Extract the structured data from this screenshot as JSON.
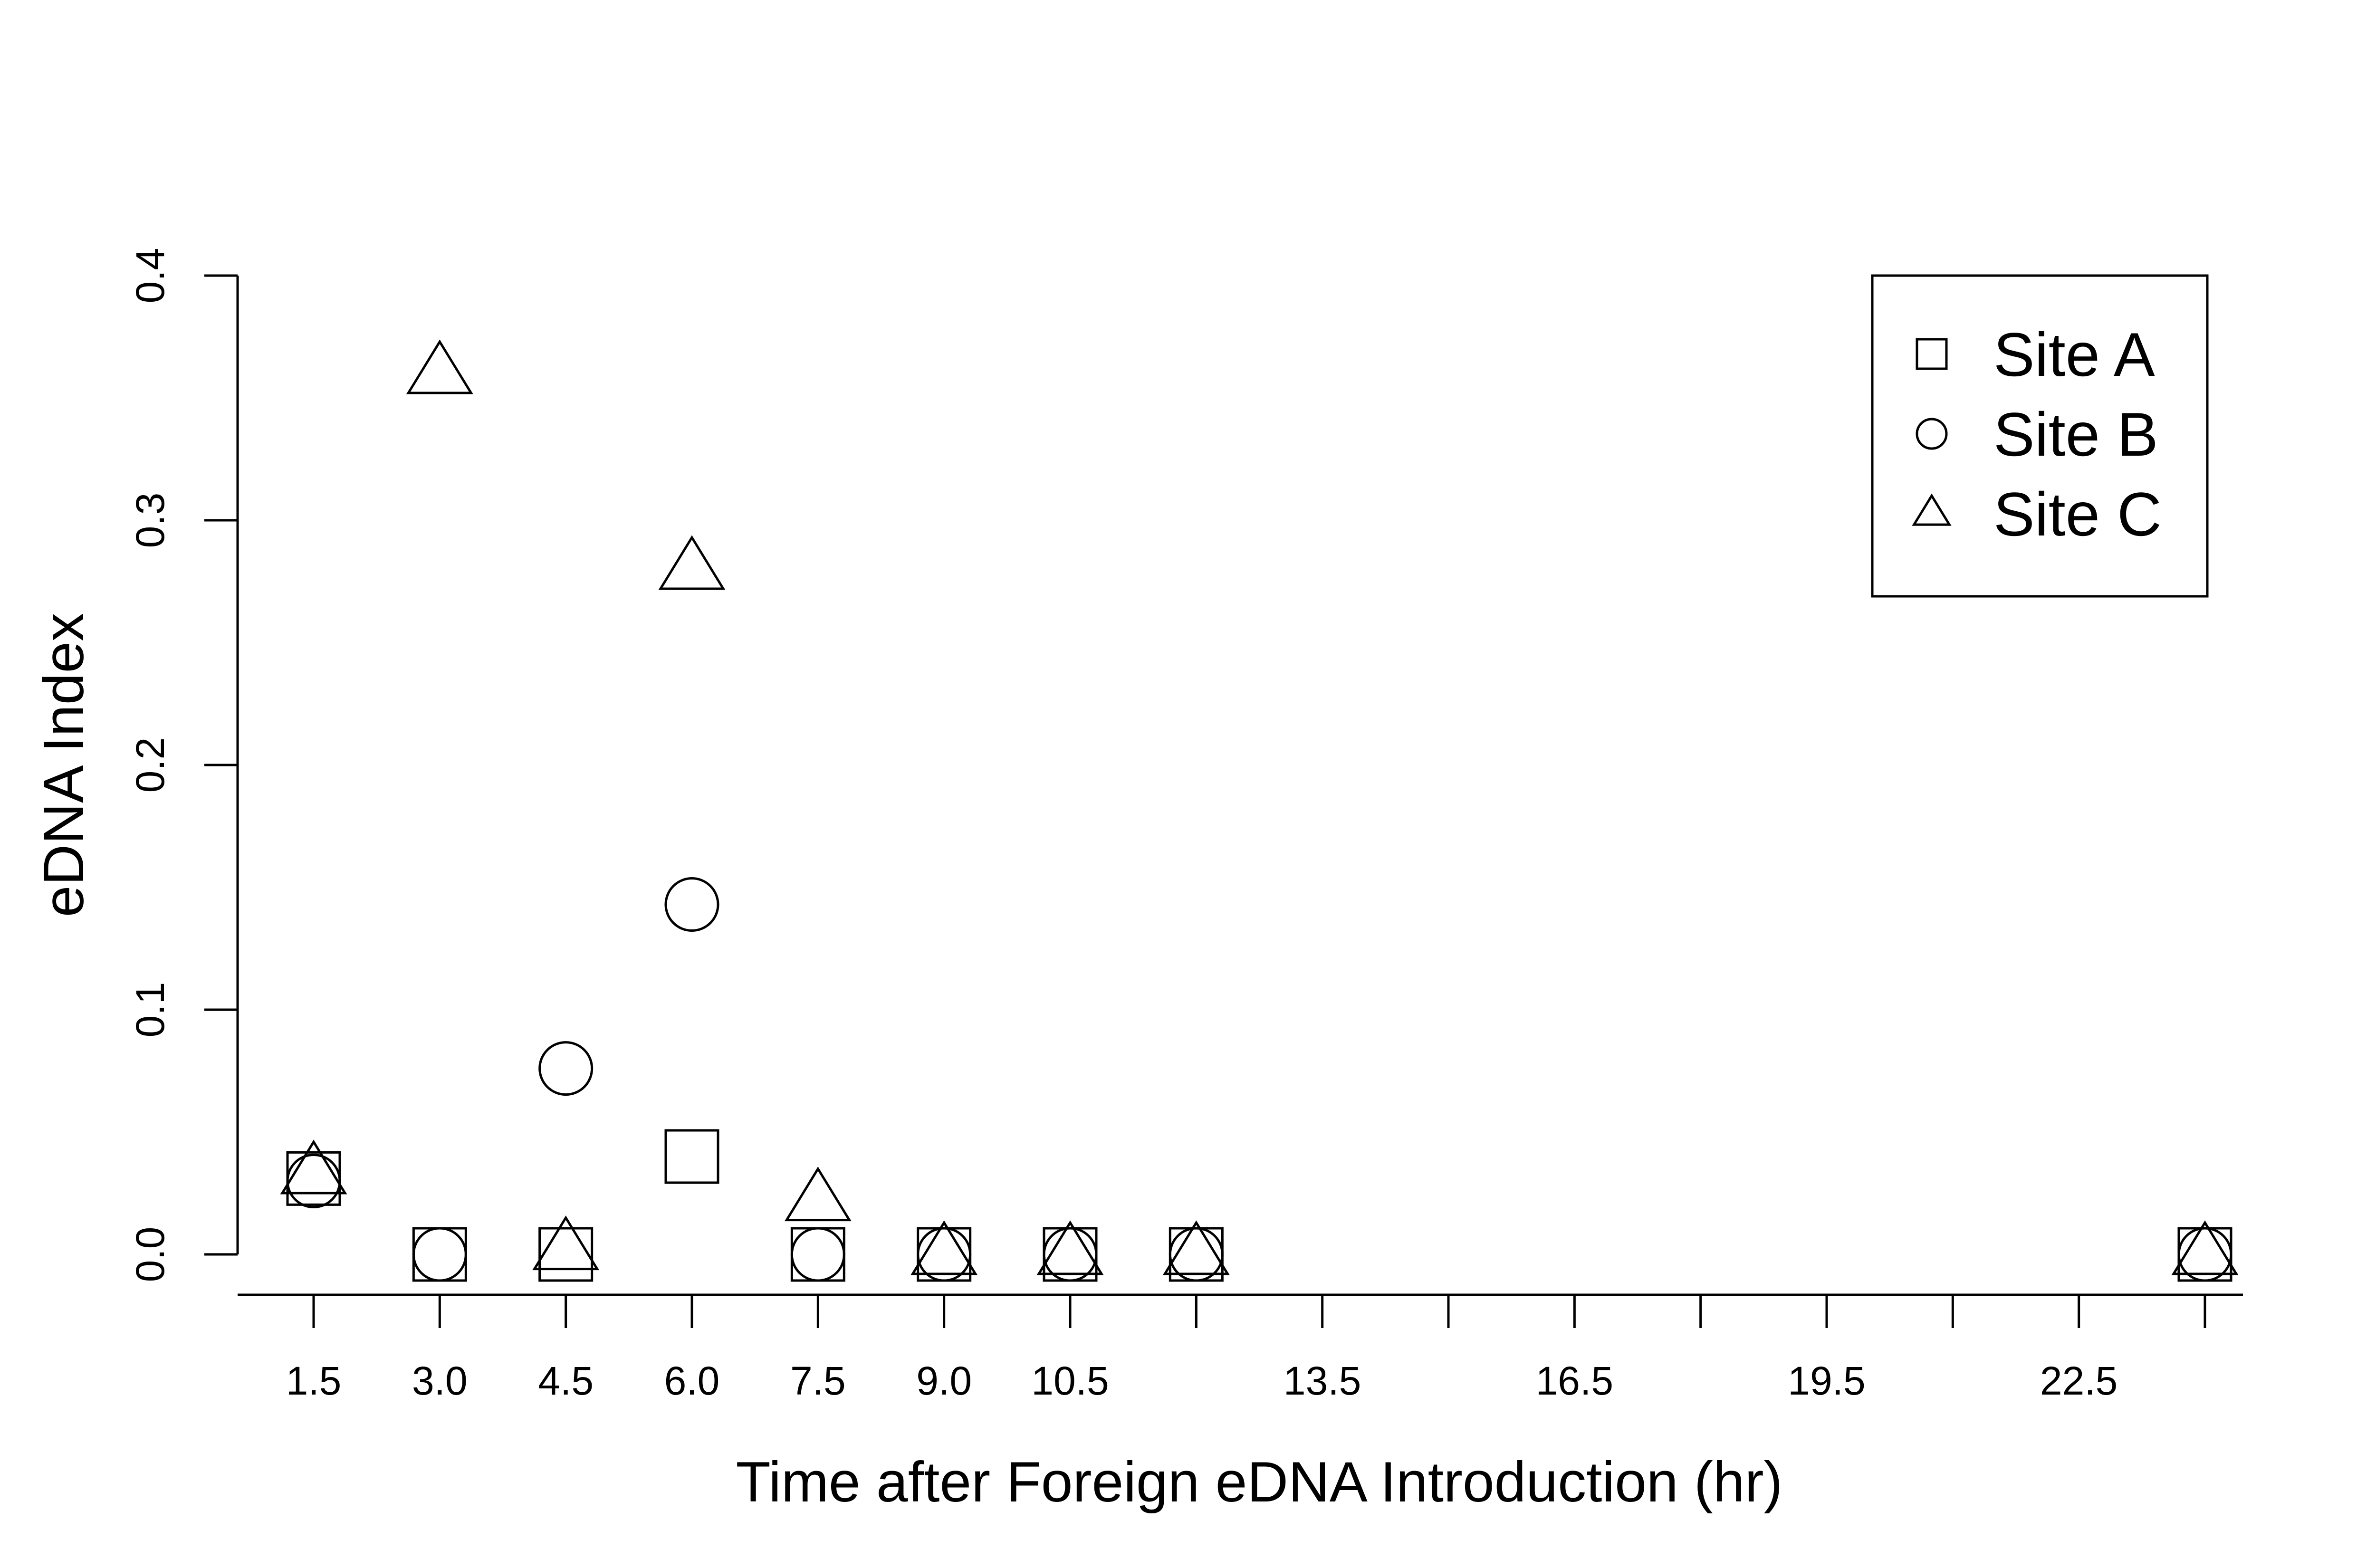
{
  "chart_data": {
    "type": "scatter",
    "xlabel": "Time after Foreign eDNA Introduction (hr)",
    "ylabel": "eDNA Index",
    "x_ticks": [
      1.5,
      3.0,
      4.5,
      6.0,
      7.5,
      9.0,
      10.5,
      12.0,
      13.5,
      15.0,
      16.5,
      18.0,
      19.5,
      21.0,
      22.5,
      24.0
    ],
    "x_tick_labels": [
      "1.5",
      "3.0",
      "4.5",
      "6.0",
      "7.5",
      "9.0",
      "10.5",
      "",
      "13.5",
      "",
      "16.5",
      "",
      "19.5",
      "",
      "22.5",
      ""
    ],
    "y_ticks": [
      0.0,
      0.1,
      0.2,
      0.3,
      0.4
    ],
    "y_tick_labels": [
      "0.0",
      "0.1",
      "0.2",
      "0.3",
      "0.4"
    ],
    "xlim": [
      1.5,
      24.0
    ],
    "ylim": [
      0.0,
      0.4
    ],
    "grid": false,
    "legend_position": "top-right",
    "series": [
      {
        "name": "Site A",
        "marker": "square",
        "points": [
          [
            1.5,
            0.031
          ],
          [
            3.0,
            0.0
          ],
          [
            4.5,
            0.0
          ],
          [
            6.0,
            0.04
          ],
          [
            7.5,
            0.0
          ],
          [
            9.0,
            0.0
          ],
          [
            10.5,
            0.0
          ],
          [
            12.0,
            0.0
          ],
          [
            24.0,
            0.0
          ]
        ]
      },
      {
        "name": "Site B",
        "marker": "circle",
        "points": [
          [
            1.5,
            0.03
          ],
          [
            3.0,
            0.0
          ],
          [
            4.5,
            0.076
          ],
          [
            6.0,
            0.143
          ],
          [
            7.5,
            0.0
          ],
          [
            9.0,
            0.0
          ],
          [
            10.5,
            0.0
          ],
          [
            12.0,
            0.0
          ],
          [
            24.0,
            0.0
          ]
        ]
      },
      {
        "name": "Site C",
        "marker": "triangle",
        "points": [
          [
            1.5,
            0.033
          ],
          [
            3.0,
            0.36
          ],
          [
            4.5,
            0.002
          ],
          [
            6.0,
            0.28
          ],
          [
            7.5,
            0.022
          ],
          [
            9.0,
            0.0
          ],
          [
            10.5,
            0.0
          ],
          [
            12.0,
            0.0
          ],
          [
            24.0,
            0.0
          ]
        ]
      }
    ]
  }
}
